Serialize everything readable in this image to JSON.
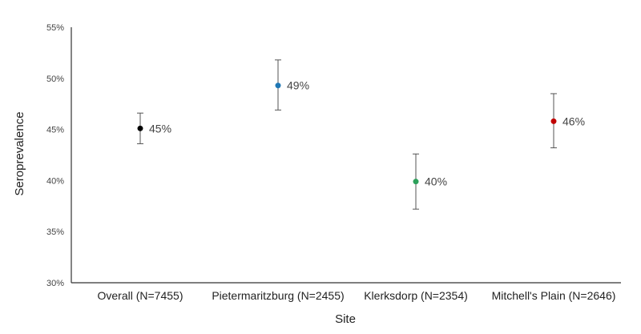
{
  "chart_data": {
    "type": "scatter",
    "title": "",
    "xlabel": "Site",
    "ylabel": "Seroprevalence",
    "ylim": [
      30,
      55
    ],
    "yticks": [
      30,
      35,
      40,
      45,
      50,
      55
    ],
    "ytick_labels": [
      "30%",
      "35%",
      "40%",
      "45%",
      "50%",
      "55%"
    ],
    "grid": false,
    "categories": [
      "Overall (N=7455)",
      "Pietermaritzburg (N=2455)",
      "Klerksdorp (N=2354)",
      "Mitchell's Plain (N=2646)"
    ],
    "values": [
      45.1,
      49.3,
      39.9,
      45.8
    ],
    "ci_lower": [
      43.6,
      46.9,
      37.2,
      43.2
    ],
    "ci_upper": [
      46.6,
      51.8,
      42.6,
      48.5
    ],
    "value_labels": [
      "45%",
      "49%",
      "40%",
      "46%"
    ],
    "colors": [
      "#000000",
      "#1f77b4",
      "#2ca05a",
      "#c00000"
    ],
    "error_bar_color": "#555555",
    "axis_color": "#333333"
  }
}
